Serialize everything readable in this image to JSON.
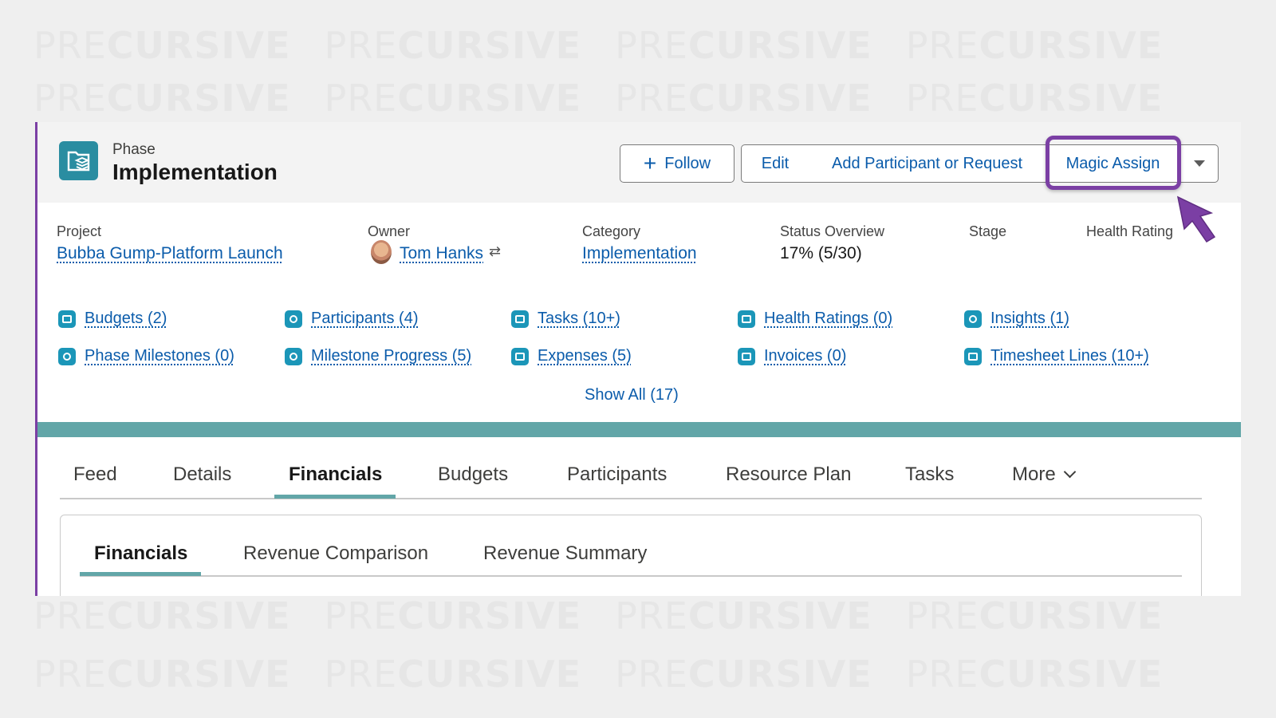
{
  "watermark": {
    "pre": "PRE",
    "main": "CURSIVE"
  },
  "header": {
    "kicker": "Phase",
    "title": "Implementation",
    "buttons": {
      "follow": "Follow",
      "edit": "Edit",
      "add": "Add Participant or Request",
      "magic": "Magic Assign"
    }
  },
  "fields": [
    {
      "label": "Project",
      "value": "Bubba Gump-Platform Launch"
    },
    {
      "label": "Owner",
      "value": "Tom Hanks"
    },
    {
      "label": "Category",
      "value": "Implementation"
    },
    {
      "label": "Status Overview",
      "value": "17% (5/30)"
    },
    {
      "label": "Stage",
      "value": ""
    },
    {
      "label": "Health Rating",
      "value": ""
    }
  ],
  "related": [
    {
      "label": "Budgets (2)",
      "icon": "budget-icon"
    },
    {
      "label": "Participants (4)",
      "icon": "participant-icon"
    },
    {
      "label": "Tasks (10+)",
      "icon": "task-icon"
    },
    {
      "label": "Health Ratings (0)",
      "icon": "health-rating-icon"
    },
    {
      "label": "Insights (1)",
      "icon": "insight-icon"
    },
    {
      "label": "Phase Milestones (0)",
      "icon": "milestone-icon"
    },
    {
      "label": "Milestone Progress (5)",
      "icon": "milestone-progress-icon"
    },
    {
      "label": "Expenses (5)",
      "icon": "expense-icon"
    },
    {
      "label": "Invoices (0)",
      "icon": "invoice-icon"
    },
    {
      "label": "Timesheet Lines (10+)",
      "icon": "timesheet-icon"
    }
  ],
  "show_all": "Show All (17)",
  "tabs": [
    "Feed",
    "Details",
    "Financials",
    "Budgets",
    "Participants",
    "Resource Plan",
    "Tasks",
    "More"
  ],
  "active_tab": "Financials",
  "subtabs": [
    "Financials",
    "Revenue Comparison",
    "Revenue Summary"
  ],
  "active_subtab": "Financials",
  "colors": {
    "accent_purple": "#7b3fa4",
    "teal": "#62a6a8",
    "link": "#0b5cab",
    "icon_blue": "#1b96b8"
  }
}
